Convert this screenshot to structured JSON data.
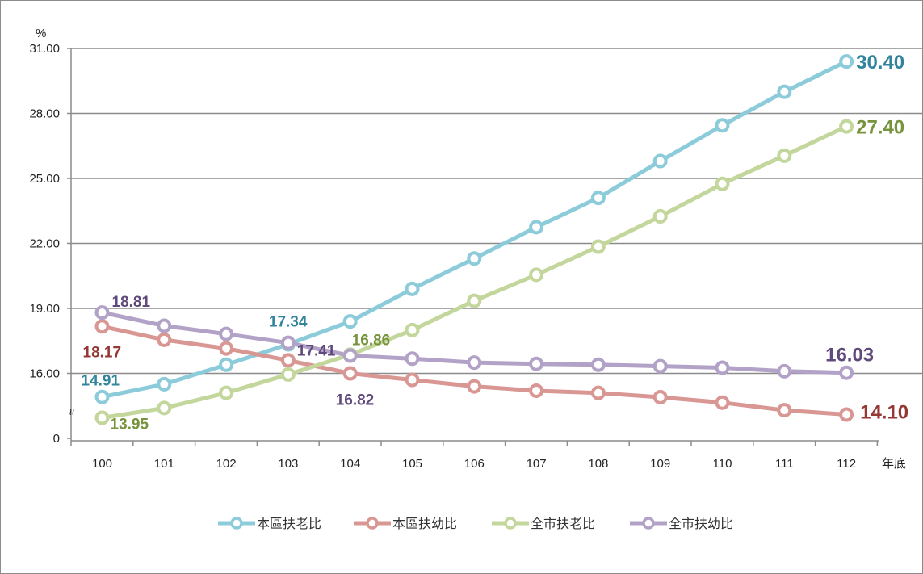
{
  "chart_data": {
    "type": "line",
    "y_unit": "%",
    "x_unit": "年底",
    "ylim": [
      13,
      31
    ],
    "y_ticks": [
      "0",
      "16.00",
      "19.00",
      "22.00",
      "25.00",
      "28.00",
      "31.00"
    ],
    "y_tick_values": [
      13,
      16,
      19,
      22,
      25,
      28,
      31
    ],
    "axis_break": "≈",
    "categories": [
      "100",
      "101",
      "102",
      "103",
      "104",
      "105",
      "106",
      "107",
      "108",
      "109",
      "110",
      "111",
      "112"
    ],
    "grid": true,
    "legend_position": "bottom",
    "series": [
      {
        "name": "本區扶老比",
        "color": "#8ccbd9",
        "label_color": "#31849b",
        "values": [
          14.91,
          15.5,
          16.4,
          17.34,
          18.4,
          19.9,
          21.3,
          22.75,
          24.1,
          25.8,
          27.45,
          29.0,
          30.4
        ]
      },
      {
        "name": "本區扶幼比",
        "color": "#d99794",
        "label_color": "#953735",
        "values": [
          18.17,
          17.55,
          17.15,
          16.6,
          16.0,
          15.7,
          15.4,
          15.2,
          15.1,
          14.9,
          14.65,
          14.3,
          14.1
        ]
      },
      {
        "name": "全市扶老比",
        "color": "#c3d69b",
        "label_color": "#77933c",
        "values": [
          13.95,
          14.4,
          15.1,
          15.95,
          16.86,
          18.0,
          19.35,
          20.55,
          21.85,
          23.25,
          24.75,
          26.05,
          27.4
        ]
      },
      {
        "name": "全市扶幼比",
        "color": "#b3a2c7",
        "label_color": "#604a7b",
        "values": [
          18.81,
          18.2,
          17.82,
          17.41,
          16.82,
          16.68,
          16.5,
          16.44,
          16.4,
          16.33,
          16.26,
          16.1,
          16.03
        ]
      }
    ],
    "data_labels": [
      {
        "series": 0,
        "index": 0,
        "text": "14.91"
      },
      {
        "series": 0,
        "index": 3,
        "text": "17.34"
      },
      {
        "series": 0,
        "index": 12,
        "text": "30.40"
      },
      {
        "series": 1,
        "index": 0,
        "text": "18.17"
      },
      {
        "series": 1,
        "index": 12,
        "text": "14.10"
      },
      {
        "series": 2,
        "index": 0,
        "text": "13.95"
      },
      {
        "series": 2,
        "index": 4,
        "text": "16.86"
      },
      {
        "series": 2,
        "index": 12,
        "text": "27.40"
      },
      {
        "series": 3,
        "index": 0,
        "text": "18.81"
      },
      {
        "series": 3,
        "index": 3,
        "text": "17.41"
      },
      {
        "series": 3,
        "index": 4,
        "text": "16.82"
      },
      {
        "series": 3,
        "index": 12,
        "text": "16.03"
      }
    ]
  }
}
